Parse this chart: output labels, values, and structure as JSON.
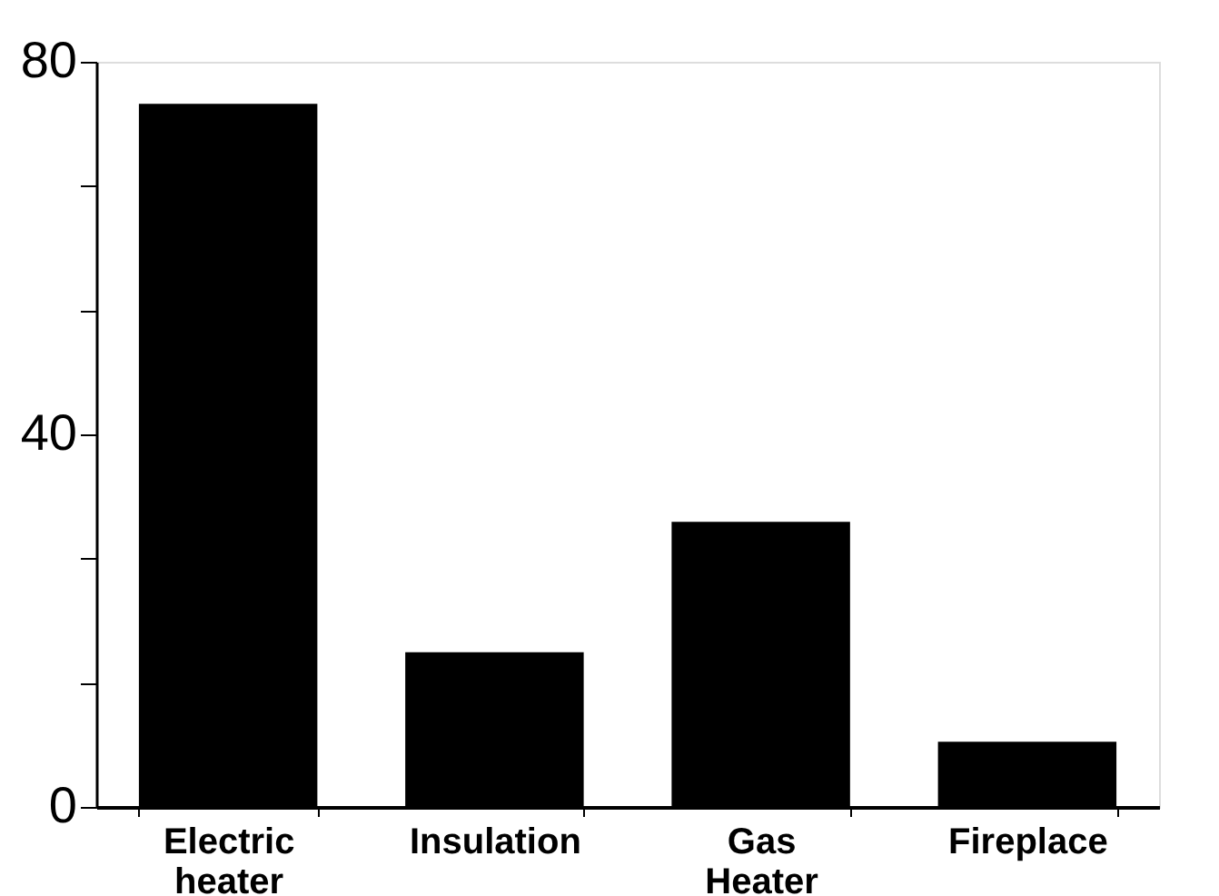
{
  "chart_data": {
    "type": "bar",
    "categories": [
      "Electric heater",
      "Insulation",
      "Gas Heater",
      "Fireplace"
    ],
    "values": [
      75.5,
      16.6,
      30.6,
      7.0
    ],
    "color": "#000000",
    "ylim": [
      0,
      80
    ],
    "yticks": [
      0,
      {
        "value": 13.33,
        "label": null
      },
      {
        "value": 26.67,
        "label": null
      },
      40,
      {
        "value": 53.33,
        "label": null
      },
      {
        "value": 66.67,
        "label": null
      },
      80
    ],
    "grid": false
  }
}
